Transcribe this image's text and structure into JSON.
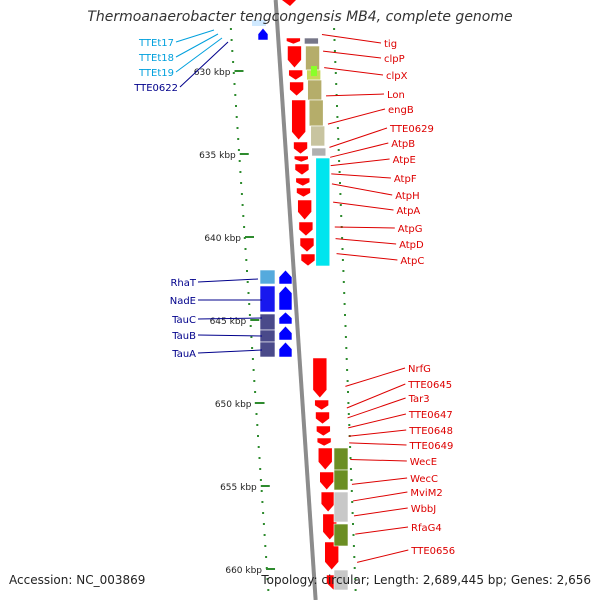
{
  "title": "Thermoanaerobacter tengcongensis MB4, complete genome",
  "footer": {
    "accession": "Accession: NC_003869",
    "summary": "Topology: circular; Length: 2,689,445 bp; Genes: 2,656"
  },
  "colors": {
    "backbone": "#8c8c8c",
    "tick": "#2e8b2e",
    "cds_red": "#ff0000",
    "cds_blue": "#0000ff",
    "cog_olive": "#b5ad6a",
    "cog_cyan": "#00e5ee",
    "cog_blue": "#1818ee",
    "cog_slate": "#4a4a8a",
    "cog_green": "#6b8e23",
    "trna_cyan": "#00bfff",
    "label_red": "#dd0000",
    "label_blue": "#00008b",
    "label_cyan": "#00a0dd"
  },
  "ticks": [
    {
      "label": "630 kbp",
      "pos": 630
    },
    {
      "label": "635 kbp",
      "pos": 635
    },
    {
      "label": "640 kbp",
      "pos": 640
    },
    {
      "label": "645 kbp",
      "pos": 645
    },
    {
      "label": "650 kbp",
      "pos": 650
    },
    {
      "label": "655 kbp",
      "pos": 655
    },
    {
      "label": "660 kbp",
      "pos": 660
    }
  ],
  "right_genes": [
    {
      "label": "tig",
      "kbp": 627.8
    },
    {
      "label": "clpP",
      "kbp": 628.8
    },
    {
      "label": "clpX",
      "kbp": 629.8
    },
    {
      "label": "Lon",
      "kbp": 631.5
    },
    {
      "label": "engB",
      "kbp": 633.2
    },
    {
      "label": "TTE0629",
      "kbp": 634.6
    },
    {
      "label": "AtpB",
      "kbp": 635.2
    },
    {
      "label": "AtpE",
      "kbp": 635.7
    },
    {
      "label": "AtpF",
      "kbp": 636.2
    },
    {
      "label": "AtpH",
      "kbp": 636.8
    },
    {
      "label": "AtpA",
      "kbp": 637.9
    },
    {
      "label": "AtpG",
      "kbp": 639.4
    },
    {
      "label": "AtpD",
      "kbp": 640.1
    },
    {
      "label": "AtpC",
      "kbp": 641.0
    },
    {
      "label": "NrfG",
      "kbp": 649.0
    },
    {
      "label": "TTE0645",
      "kbp": 650.3
    },
    {
      "label": "Tar3",
      "kbp": 650.9
    },
    {
      "label": "TTE0647",
      "kbp": 651.5
    },
    {
      "label": "TTE0648",
      "kbp": 652.0
    },
    {
      "label": "TTE0649",
      "kbp": 652.4
    },
    {
      "label": "WecE",
      "kbp": 653.4
    },
    {
      "label": "WecC",
      "kbp": 654.9
    },
    {
      "label": "MviM2",
      "kbp": 655.9
    },
    {
      "label": "WbbJ",
      "kbp": 656.8
    },
    {
      "label": "RfaG4",
      "kbp": 657.9
    },
    {
      "label": "TTE0656",
      "kbp": 659.6
    }
  ],
  "left_genes": [
    {
      "label": "TTEt17",
      "color": "cyan"
    },
    {
      "label": "TTEt18",
      "color": "cyan"
    },
    {
      "label": "TTEt19",
      "color": "cyan"
    },
    {
      "label": "TTE0622",
      "color": "blue"
    },
    {
      "label": "RhaT",
      "color": "blue"
    },
    {
      "label": "NadE",
      "color": "blue"
    },
    {
      "label": "TauC",
      "color": "blue"
    },
    {
      "label": "TauB",
      "color": "blue"
    },
    {
      "label": "TauA",
      "color": "blue"
    }
  ]
}
